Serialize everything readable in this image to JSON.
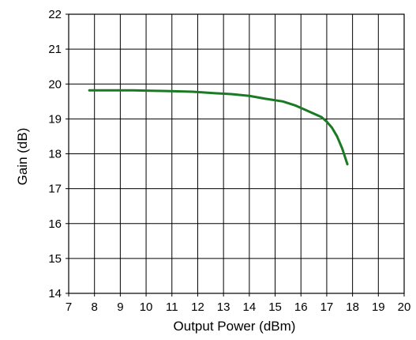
{
  "chart_data": {
    "type": "line",
    "title": "",
    "xlabel": "Output Power (dBm)",
    "ylabel": "Gain (dB)",
    "xlim": [
      7,
      20
    ],
    "ylim": [
      14,
      22
    ],
    "x_ticks": [
      "7",
      "8",
      "9",
      "10",
      "11",
      "12",
      "13",
      "14",
      "15",
      "16",
      "17",
      "18",
      "19",
      "20"
    ],
    "y_ticks": [
      "14",
      "15",
      "16",
      "17",
      "18",
      "19",
      "20",
      "21",
      "22"
    ],
    "grid": true,
    "legend": "none",
    "series": [
      {
        "color": "#1a7a23",
        "x": [
          7.8,
          8.5,
          9.5,
          10.0,
          10.8,
          11.8,
          12.6,
          13.3,
          14.0,
          14.6,
          15.3,
          15.8,
          16.2,
          16.5,
          16.8,
          17.0,
          17.2,
          17.4,
          17.6,
          17.8
        ],
        "y": [
          19.82,
          19.82,
          19.82,
          19.81,
          19.8,
          19.78,
          19.74,
          19.71,
          19.66,
          19.58,
          19.5,
          19.38,
          19.25,
          19.15,
          19.05,
          18.92,
          18.75,
          18.5,
          18.15,
          17.7
        ]
      }
    ]
  }
}
